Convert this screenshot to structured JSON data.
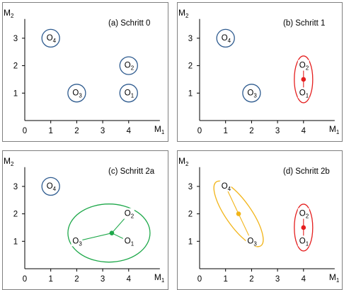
{
  "axes": {
    "x_label": "M",
    "x_sub": "1",
    "y_label": "M",
    "y_sub": "2",
    "x_ticks": [
      "0",
      "1",
      "2",
      "3",
      "4"
    ],
    "y_ticks": [
      "1",
      "2",
      "3"
    ]
  },
  "objects": {
    "O1": {
      "letter": "O",
      "sub": "1",
      "x": 4,
      "y": 1
    },
    "O2": {
      "letter": "O",
      "sub": "2",
      "x": 4,
      "y": 2
    },
    "O3": {
      "letter": "O",
      "sub": "3",
      "x": 2,
      "y": 1
    },
    "O4": {
      "letter": "O",
      "sub": "4",
      "x": 1,
      "y": 3
    }
  },
  "colors": {
    "object_circle": "#2e5b8f",
    "cluster_red": "#e51f1f",
    "cluster_green": "#1ea84a",
    "cluster_yellow": "#f2b51a",
    "frame": "#7f7f7f"
  },
  "panels": [
    {
      "title": "(a) Schritt 0",
      "circled": [
        "O1",
        "O2",
        "O3",
        "O4"
      ],
      "clusters": []
    },
    {
      "title": "(b) Schritt 1",
      "circled": [
        "O3",
        "O4"
      ],
      "clusters": [
        {
          "members": [
            "O1",
            "O2"
          ],
          "center": [
            4,
            1.5
          ],
          "color": "cluster_red"
        }
      ]
    },
    {
      "title": "(c) Schritt 2a",
      "circled": [
        "O4"
      ],
      "clusters": [
        {
          "members": [
            "O1",
            "O2",
            "O3"
          ],
          "center": [
            3.35,
            1.3
          ],
          "color": "cluster_green"
        }
      ]
    },
    {
      "title": "(d) Schritt 2b",
      "circled": [],
      "clusters": [
        {
          "members": [
            "O3",
            "O4"
          ],
          "center": [
            1.5,
            2.0
          ],
          "color": "cluster_yellow"
        },
        {
          "members": [
            "O1",
            "O2"
          ],
          "center": [
            4,
            1.5
          ],
          "color": "cluster_red"
        }
      ]
    }
  ]
}
